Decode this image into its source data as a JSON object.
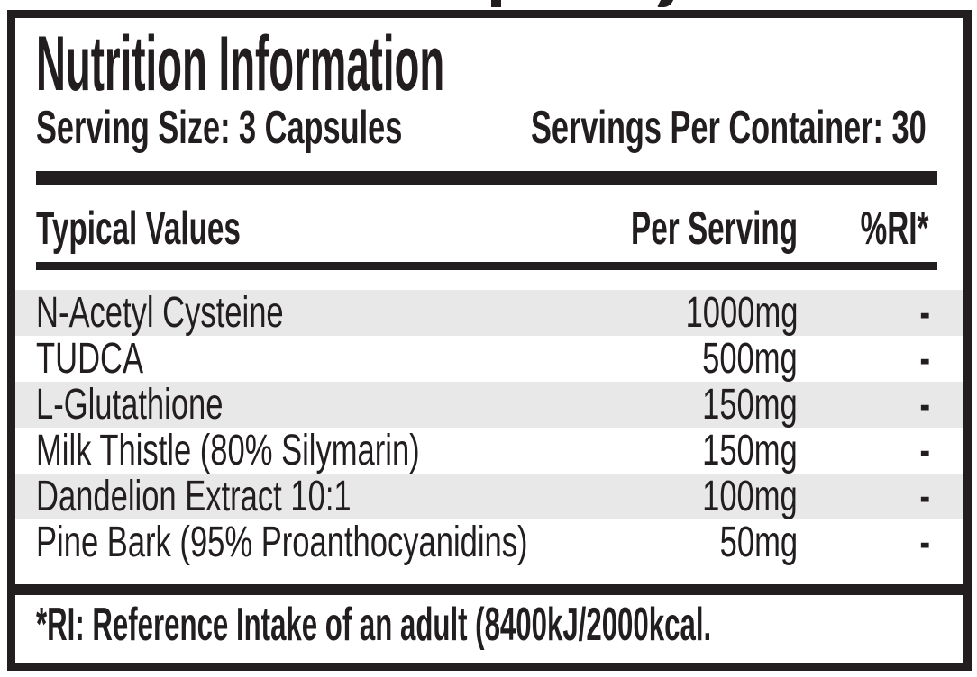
{
  "label": {
    "title": "Nutrition Information",
    "serving_size": "Serving Size: 3 Capsules",
    "servings_per_container": "Servings Per Container: 30",
    "columns": {
      "name": "Typical Values",
      "per_serving": "Per Serving",
      "ri": "%RI*"
    },
    "rows": [
      {
        "name": "N-Acetyl Cysteine",
        "per_serving": "1000mg",
        "ri": "-"
      },
      {
        "name": "TUDCA",
        "per_serving": "500mg",
        "ri": "-"
      },
      {
        "name": "L-Glutathione",
        "per_serving": "150mg",
        "ri": "-"
      },
      {
        "name": "Milk Thistle (80% Silymarin)",
        "per_serving": "150mg",
        "ri": "-"
      },
      {
        "name": "Dandelion Extract 10:1",
        "per_serving": "100mg",
        "ri": "-"
      },
      {
        "name": "Pine Bark (95% Proanthocyanidins)",
        "per_serving": "50mg",
        "ri": "-"
      }
    ],
    "footnote": "*RI: Reference Intake of an adult (8400kJ/2000kcal.",
    "colors": {
      "ink": "#221e1f",
      "shaded_row": "#e8e8e8",
      "background": "#ffffff"
    }
  }
}
